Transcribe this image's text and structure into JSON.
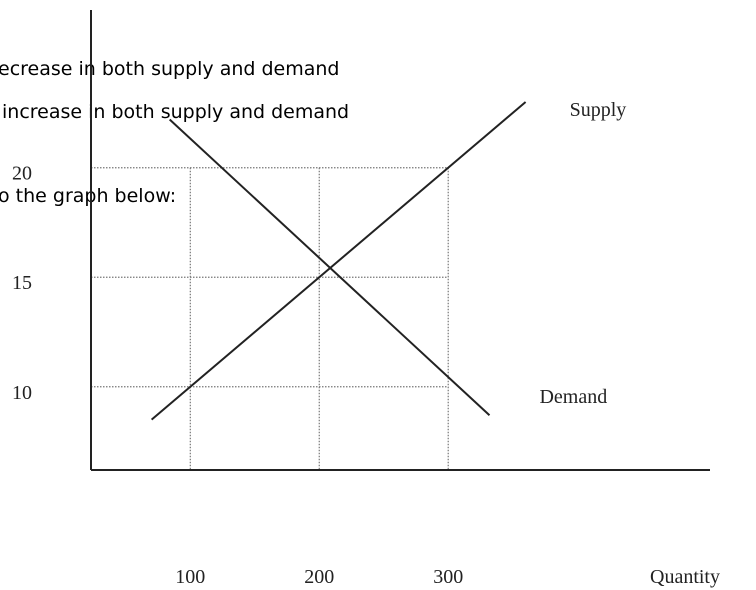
{
  "overlay_text": [
    "ecrease in both supply and demand",
    "increase in both supply and demand",
    "o the graph below:"
  ],
  "chart_data": {
    "type": "line",
    "xlabel": "Quantity",
    "xlim": [
      23,
      503
    ],
    "xticks": [
      100,
      200,
      300
    ],
    "ylim": [
      6.2,
      27.2
    ],
    "yticks": [
      10,
      15,
      20
    ],
    "grid": true,
    "color": "#222",
    "series": [
      {
        "name": "Supply",
        "x": [
          70,
          360
        ],
        "values": [
          8.5,
          23
        ]
      },
      {
        "name": "Demand",
        "x": [
          84,
          332
        ],
        "values": [
          22.2,
          8.7
        ]
      }
    ]
  }
}
